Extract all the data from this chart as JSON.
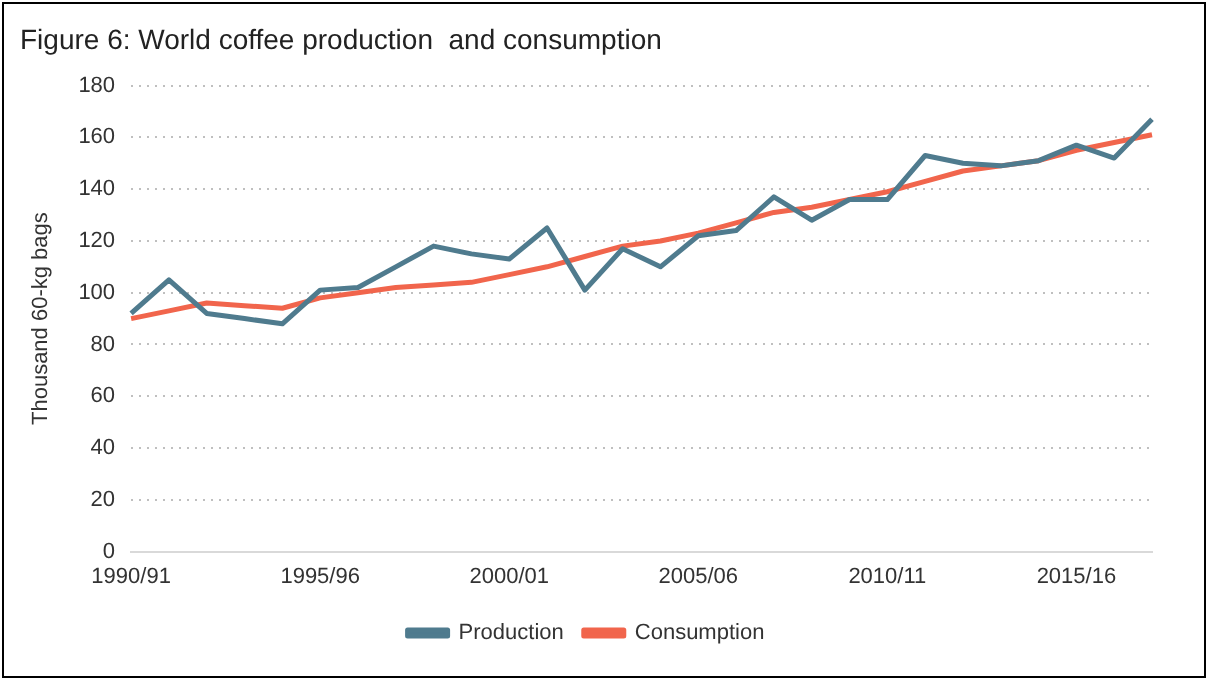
{
  "chart_data": {
    "type": "line",
    "title": "Figure 6: World coffee production  and consumption",
    "ylabel": "Thousand 60-kg bags",
    "categories": [
      "1990/91",
      null,
      null,
      null,
      null,
      "1995/96",
      null,
      null,
      null,
      null,
      "2000/01",
      null,
      null,
      null,
      null,
      "2005/06",
      null,
      null,
      null,
      null,
      "2010/11",
      null,
      null,
      null,
      null,
      "2015/16",
      null,
      null
    ],
    "series": [
      {
        "name": "Production",
        "color": "#4f7b8e",
        "values": [
          92,
          105,
          92,
          90,
          88,
          101,
          102,
          110,
          118,
          115,
          113,
          125,
          101,
          117,
          110,
          122,
          124,
          137,
          128,
          136,
          136,
          153,
          150,
          149,
          151,
          157,
          152,
          167
        ]
      },
      {
        "name": "Consumption",
        "color": "#f1654c",
        "values": [
          90,
          93,
          96,
          95,
          94,
          98,
          100,
          102,
          103,
          104,
          107,
          110,
          114,
          118,
          120,
          123,
          127,
          131,
          133,
          136,
          139,
          143,
          147,
          149,
          151,
          155,
          158,
          161
        ]
      }
    ],
    "ylim": [
      0,
      180
    ],
    "yticks": [
      0,
      20,
      40,
      60,
      80,
      100,
      120,
      140,
      160,
      180
    ],
    "grid": "y",
    "legend": "bottom",
    "marker": "none",
    "line_style": "solid"
  }
}
